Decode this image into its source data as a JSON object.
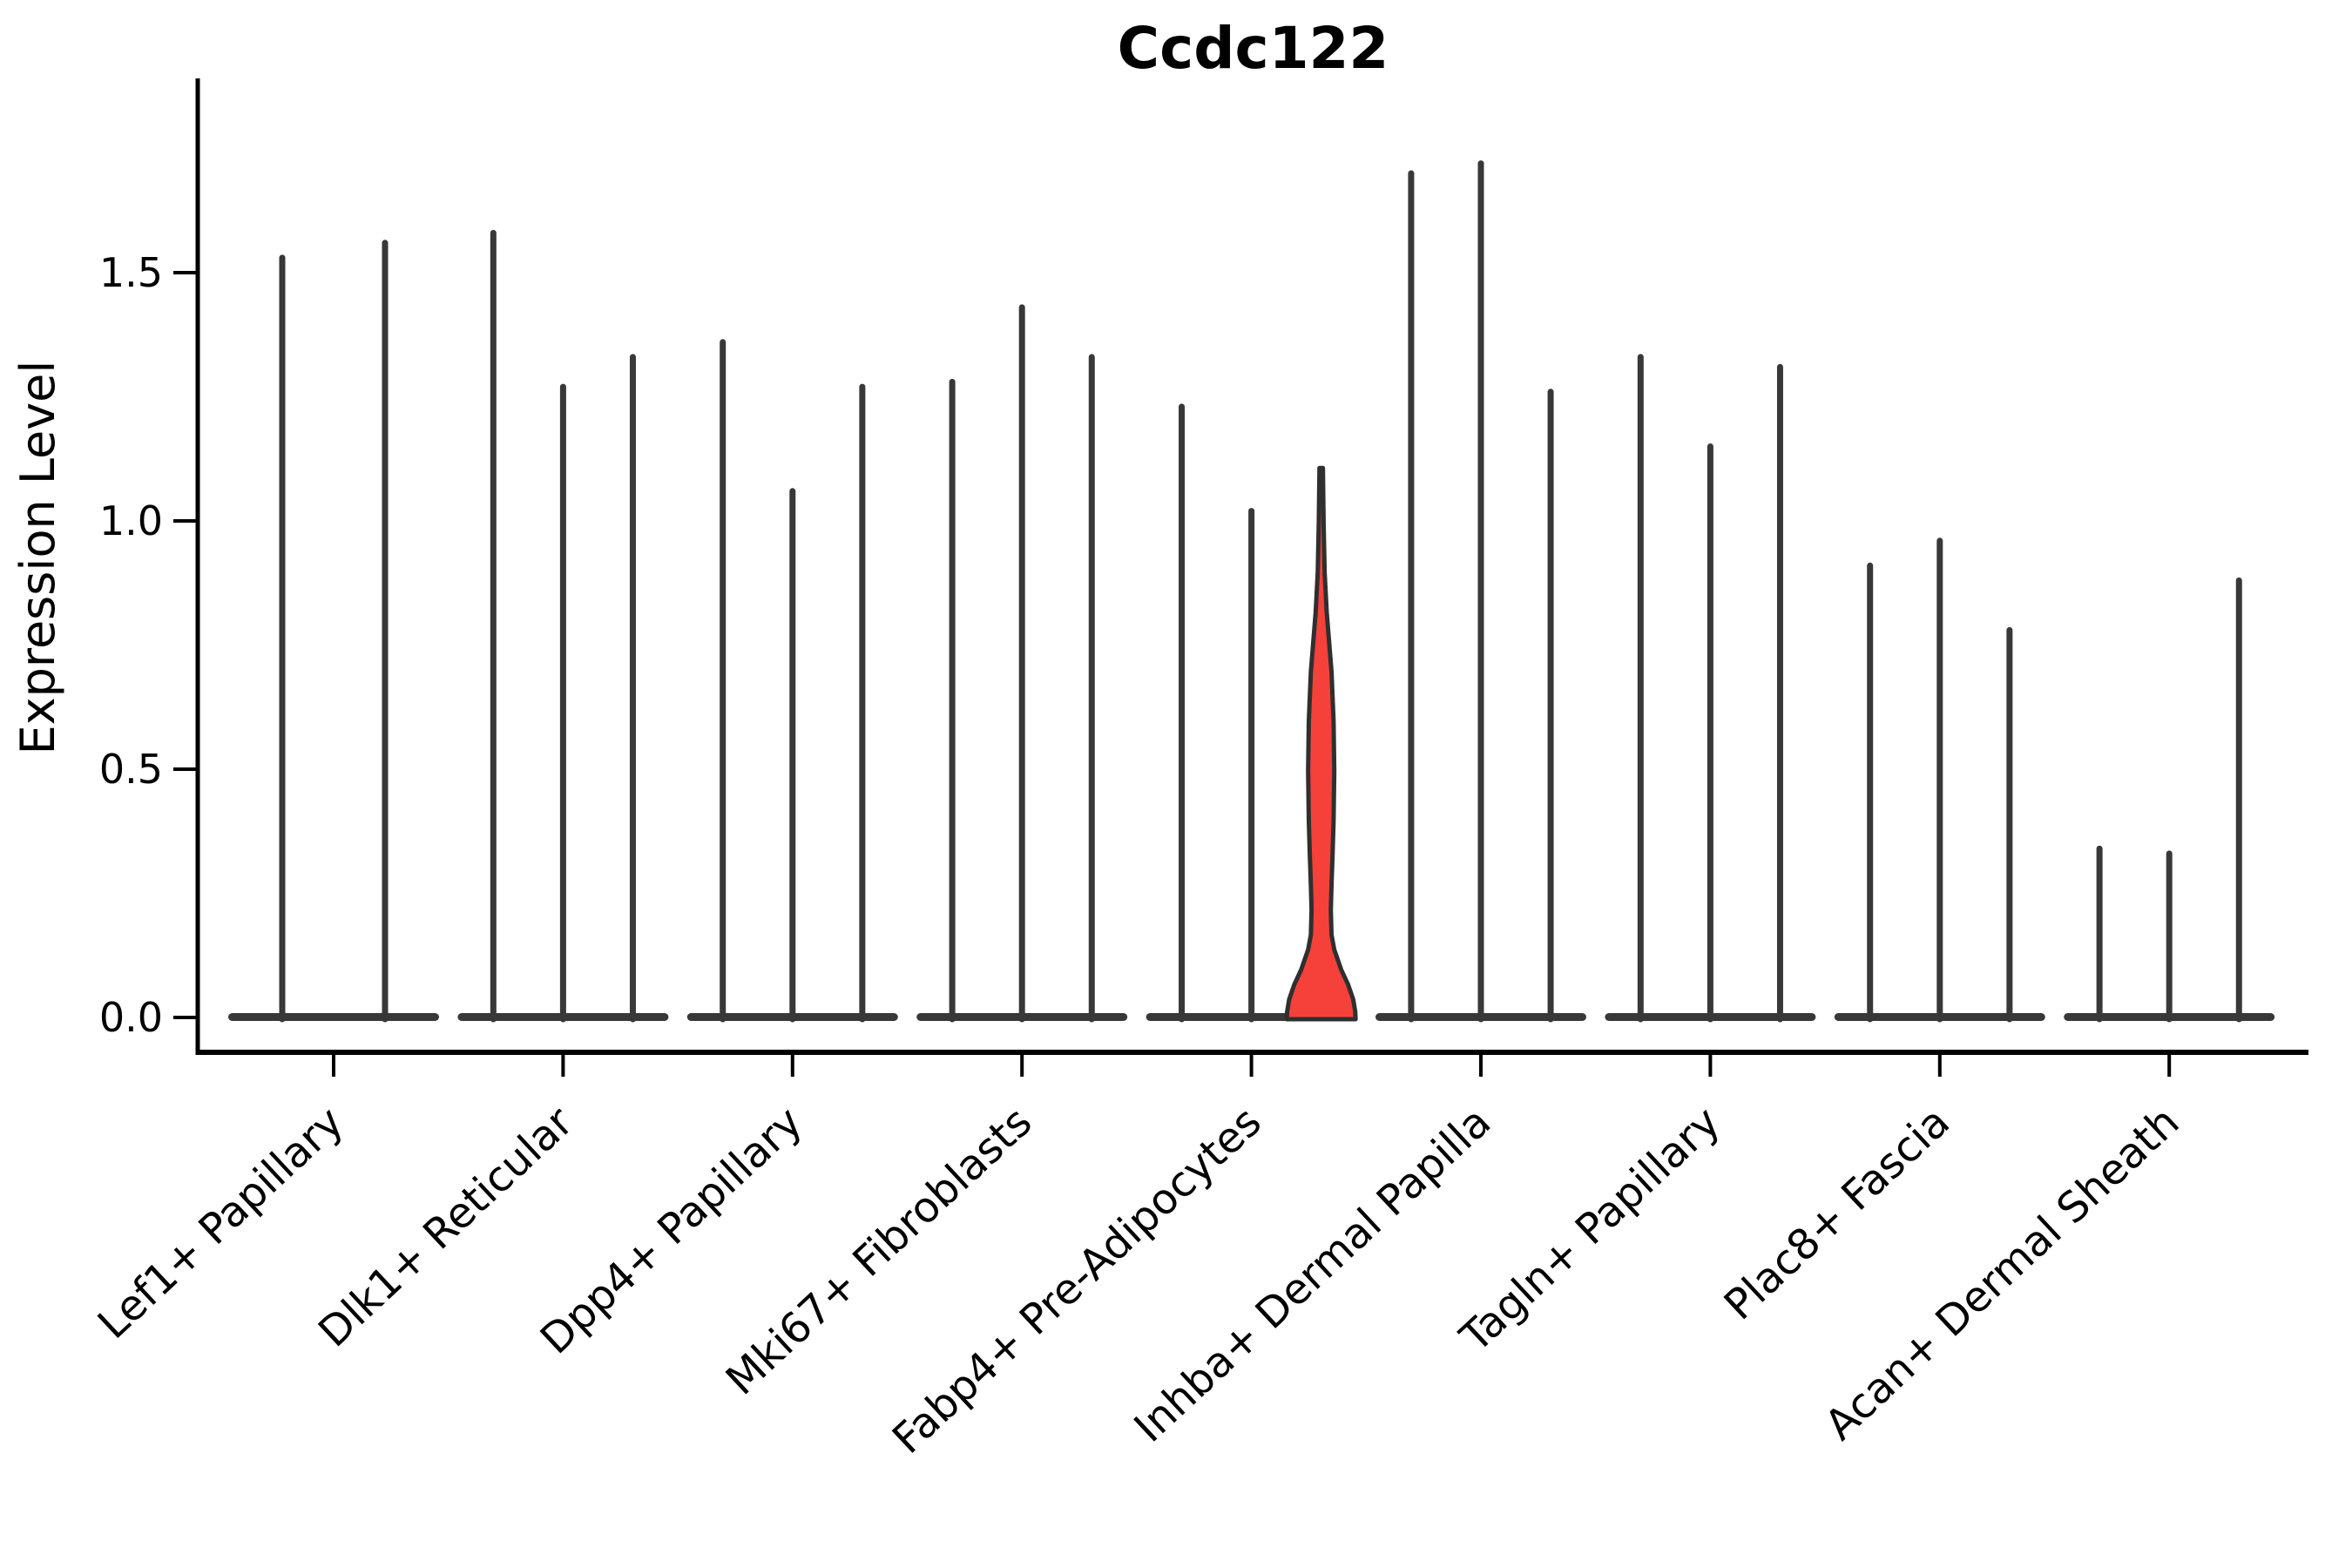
{
  "chart_data": {
    "type": "violin",
    "title": "Ccdc122",
    "xlabel": "",
    "ylabel": "Expression Level",
    "yticks": [
      0.0,
      0.5,
      1.0,
      1.5
    ],
    "yticklabels": [
      "0.0",
      "0.5",
      "1.0",
      "1.5"
    ],
    "ylim": [
      -0.07,
      1.89
    ],
    "grid": false,
    "legend": "none",
    "categories": [
      "Lef1+ Papillary",
      "Dlk1+ Reticular",
      "Dpp4+ Papillary",
      "Mki67+ Fibroblasts",
      "Fabp4+ Pre-Adipocytes",
      "Inhba+ Dermal Papilla",
      "Tagln+ Papillary",
      "Plac8+ Fascia",
      "Acan+ Dermal Sheath"
    ],
    "groups": [
      {
        "category": "Lef1+ Papillary",
        "violins": [
          {
            "max": 1.53,
            "offset": -0.224
          },
          {
            "max": 1.56,
            "offset": 0.224
          }
        ]
      },
      {
        "category": "Dlk1+ Reticular",
        "violins": [
          {
            "max": 1.58,
            "offset": -0.304
          },
          {
            "max": 1.27,
            "offset": 0
          },
          {
            "max": 1.33,
            "offset": 0.304
          }
        ]
      },
      {
        "category": "Dpp4+ Papillary",
        "violins": [
          {
            "max": 1.36,
            "offset": -0.304
          },
          {
            "max": 1.06,
            "offset": 0
          },
          {
            "max": 1.27,
            "offset": 0.304
          }
        ]
      },
      {
        "category": "Mki67+ Fibroblasts",
        "violins": [
          {
            "max": 1.28,
            "offset": -0.304
          },
          {
            "max": 1.43,
            "offset": 0
          },
          {
            "max": 1.33,
            "offset": 0.304
          }
        ]
      },
      {
        "category": "Fabp4+ Pre-Adipocytes",
        "violins": [
          {
            "max": 1.23,
            "offset": -0.304
          },
          {
            "max": 1.02,
            "offset": 0
          },
          {
            "max": 1.11,
            "offset": 0.304,
            "highlighted": true,
            "fill": "#f5413a"
          }
        ]
      },
      {
        "category": "Inhba+ Dermal Papilla",
        "violins": [
          {
            "max": 1.7,
            "offset": -0.304
          },
          {
            "max": 1.72,
            "offset": 0
          },
          {
            "max": 1.26,
            "offset": 0.304
          }
        ]
      },
      {
        "category": "Tagln+ Papillary",
        "violins": [
          {
            "max": 1.33,
            "offset": -0.304
          },
          {
            "max": 1.15,
            "offset": 0
          },
          {
            "max": 1.31,
            "offset": 0.304
          }
        ]
      },
      {
        "category": "Plac8+ Fascia",
        "violins": [
          {
            "max": 0.91,
            "offset": -0.304
          },
          {
            "max": 0.96,
            "offset": 0
          },
          {
            "max": 0.78,
            "offset": 0.304
          }
        ]
      },
      {
        "category": "Acan+ Dermal Sheath",
        "violins": [
          {
            "max": 0.34,
            "offset": -0.304
          },
          {
            "max": 0.33,
            "offset": 0
          },
          {
            "max": 0.88,
            "offset": 0.304
          }
        ]
      }
    ],
    "highlight_profile": [
      [
        0.0,
        1.0
      ],
      [
        0.015,
        0.99
      ],
      [
        0.04,
        0.93
      ],
      [
        0.07,
        0.78
      ],
      [
        0.1,
        0.58
      ],
      [
        0.14,
        0.38
      ],
      [
        0.17,
        0.3
      ],
      [
        0.22,
        0.28
      ],
      [
        0.27,
        0.3
      ],
      [
        0.33,
        0.33
      ],
      [
        0.4,
        0.36
      ],
      [
        0.5,
        0.38
      ],
      [
        0.6,
        0.36
      ],
      [
        0.7,
        0.3
      ],
      [
        0.82,
        0.16
      ],
      [
        0.9,
        0.1
      ],
      [
        1.0,
        0.07
      ],
      [
        1.11,
        0.05
      ]
    ],
    "style": {
      "stem_color": "#383838",
      "baseline_color": "#383838",
      "axis_color": "#000000",
      "highlight_fill": "#f5413a",
      "highlight_stroke": "#2f2f2f",
      "background": "#ffffff"
    }
  }
}
